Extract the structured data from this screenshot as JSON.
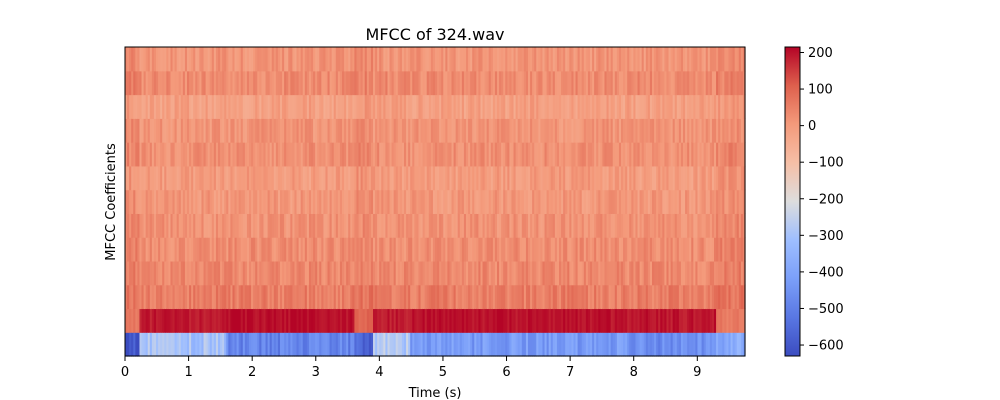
{
  "chart_data": {
    "type": "heatmap",
    "title": "MFCC of 324.wav",
    "xlabel": "Time (s)",
    "ylabel": "MFCC Coefficients",
    "xlim": [
      0,
      9.75
    ],
    "x_ticks": [
      0,
      1,
      2,
      3,
      4,
      5,
      6,
      7,
      8,
      9
    ],
    "n_coefficients": 13,
    "colorscale": "coolwarm",
    "clim": [
      -630,
      215
    ],
    "colorbar_ticks": [
      200,
      100,
      0,
      -100,
      -200,
      -300,
      -400,
      -500,
      -600
    ],
    "colorbar_tick_labels": [
      "200",
      "100",
      "0",
      "−100",
      "−200",
      "−300",
      "−400",
      "−500",
      "−600"
    ],
    "segments": [
      {
        "start": 0.0,
        "end": 0.22,
        "c0": -600,
        "c1": 70
      },
      {
        "start": 0.22,
        "end": 1.6,
        "c0": -300,
        "c1": 190
      },
      {
        "start": 1.6,
        "end": 3.6,
        "c0": -490,
        "c1": 205
      },
      {
        "start": 3.6,
        "end": 3.9,
        "c0": -580,
        "c1": 100
      },
      {
        "start": 3.9,
        "end": 4.5,
        "c0": -280,
        "c1": 190
      },
      {
        "start": 4.5,
        "end": 7.9,
        "c0": -430,
        "c1": 200
      },
      {
        "start": 7.9,
        "end": 9.3,
        "c0": -470,
        "c1": 195
      },
      {
        "start": 9.3,
        "end": 9.75,
        "c0": -380,
        "c1": 60
      }
    ],
    "higher_coeff_mean": [
      55,
      35,
      25,
      15,
      5,
      -5,
      20,
      10,
      -15,
      30,
      10,
      5
    ],
    "higher_coeff_spread": 35
  }
}
